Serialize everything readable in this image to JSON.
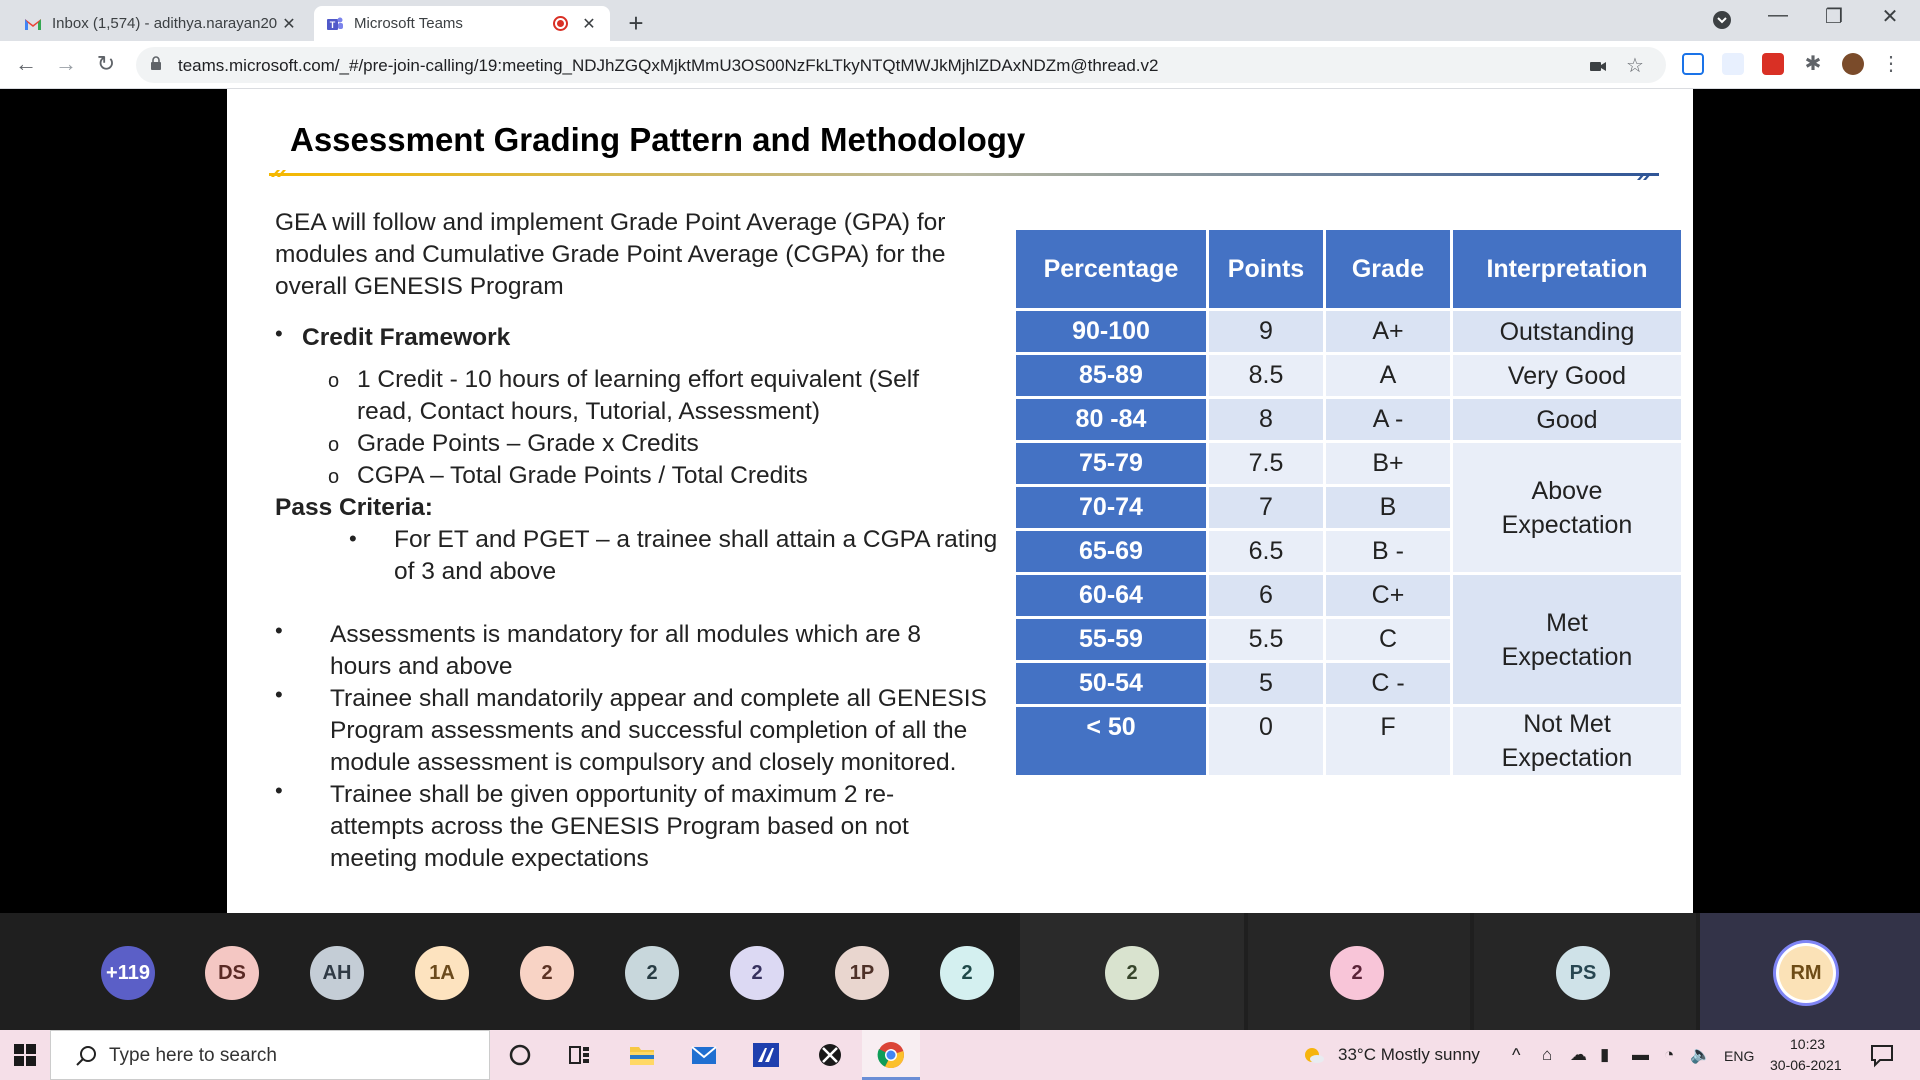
{
  "browser": {
    "tabs": [
      {
        "title": "Inbox (1,574) - adithya.narayan20",
        "icon": "gmail-icon"
      },
      {
        "title": "Microsoft Teams",
        "icon": "teams-icon",
        "recording": true
      }
    ],
    "url": "teams.microsoft.com/_#/pre-join-calling/19:meeting_NDJhZGQxMjktMmU3OS00NzFkLTkyNTQtMWJkMjhlZDAxNDZm@thread.v2"
  },
  "slide": {
    "title": "Assessment Grading Pattern and Methodology",
    "intro": [
      "GEA will follow and implement Grade Point Average (GPA) for",
      "modules and Cumulative Grade Point  Average (CGPA) for the",
      "overall GENESIS Program"
    ],
    "credit_heading": "Credit Framework",
    "credit_items": [
      [
        "1 Credit - 10 hours of learning effort equivalent (Self",
        "read, Contact hours, Tutorial, Assessment)"
      ],
      [
        "Grade Points – Grade x Credits"
      ],
      [
        "CGPA – Total Grade Points / Total Credits"
      ]
    ],
    "pass_heading": "Pass Criteria:",
    "pass_items": [
      [
        "For ET and PGET – a trainee shall attain a CGPA rating",
        "of 3 and above"
      ]
    ],
    "rules": [
      [
        "Assessments is mandatory for all modules which are 8",
        "hours and above"
      ],
      [
        "Trainee shall mandatorily appear and complete all GENESIS",
        "Program assessments and successful completion of all the",
        "module assessment is compulsory and closely monitored."
      ],
      [
        "Trainee shall be given opportunity of maximum 2 re-",
        "attempts across the GENESIS Program based on not",
        "meeting module expectations"
      ]
    ],
    "table": {
      "headers": [
        "Percentage",
        "Points",
        "Grade",
        "Interpretation"
      ],
      "rows": [
        [
          "90-100",
          "9",
          "A+"
        ],
        [
          "85-89",
          "8.5",
          "A"
        ],
        [
          "80 -84",
          "8",
          "A -"
        ],
        [
          "75-79",
          "7.5",
          "B+"
        ],
        [
          "70-74",
          "7",
          "B"
        ],
        [
          "65-69",
          "6.5",
          "B -"
        ],
        [
          "60-64",
          "6",
          "C+"
        ],
        [
          "55-59",
          "5.5",
          "C"
        ],
        [
          "50-54",
          "5",
          "C -"
        ],
        [
          "< 50",
          "0",
          "F"
        ]
      ],
      "interpretations": [
        "Outstanding",
        "Very Good",
        "Good",
        "Above Expectation",
        "Met Expectation",
        "Not Met Expectation"
      ]
    }
  },
  "participants": [
    {
      "label": "+119",
      "color": "#5b5fc7",
      "text_color": "#ffffff"
    },
    {
      "label": "DS",
      "color": "#f4c7c3",
      "text_color": "#5a2a25"
    },
    {
      "label": "AH",
      "color": "#c4cdd6",
      "text_color": "#2f3a45"
    },
    {
      "label": "1A",
      "color": "#fde3bf",
      "text_color": "#6b4a1c"
    },
    {
      "label": "2",
      "color": "#f8d3c5",
      "text_color": "#5c3325"
    },
    {
      "label": "2",
      "color": "#c8d7dc",
      "text_color": "#283c44"
    },
    {
      "label": "2",
      "color": "#dcd9f3",
      "text_color": "#36315e"
    },
    {
      "label": "1P",
      "color": "#e9d6cf",
      "text_color": "#4e3128"
    },
    {
      "label": "2",
      "color": "#d4f0f0",
      "text_color": "#1f4a4a"
    },
    {
      "label": "2",
      "color": "#d9e3cf",
      "text_color": "#37452b"
    },
    {
      "label": "2",
      "color": "#f8c5d8",
      "text_color": "#5b2338"
    },
    {
      "label": "PS",
      "color": "#cfe2e8",
      "text_color": "#274651"
    },
    {
      "label": "RM",
      "color": "#fbe2b7",
      "text_color": "#6e4c16"
    }
  ],
  "taskbar": {
    "search_placeholder": "Type here to search",
    "weather": "33°C  Mostly sunny",
    "lang": "ENG",
    "time": "10:23",
    "date": "30-06-2021"
  }
}
